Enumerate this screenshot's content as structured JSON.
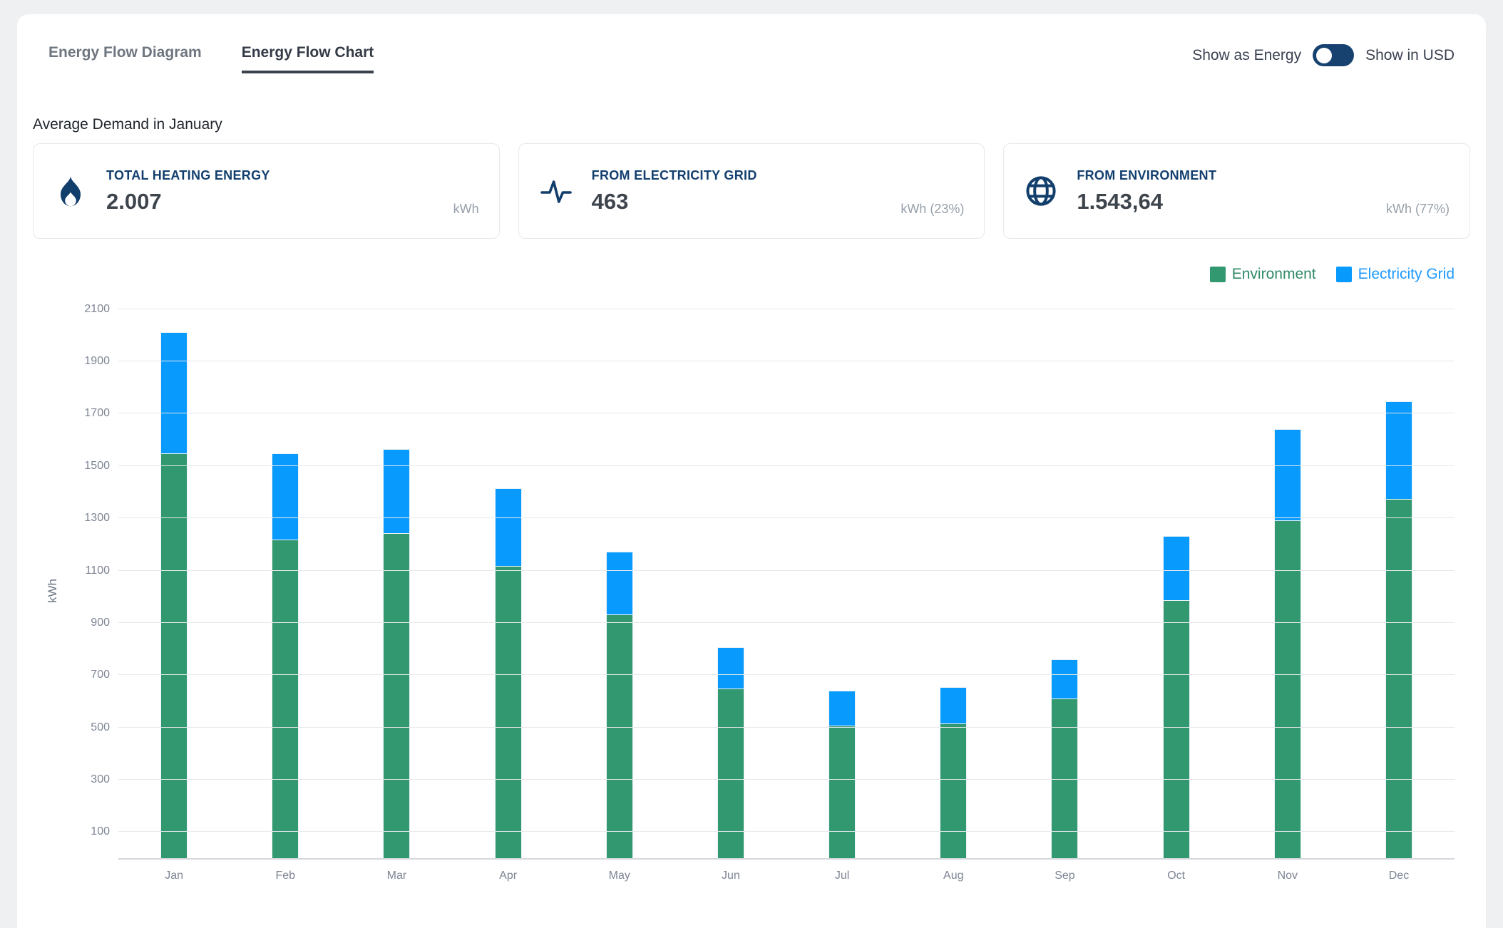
{
  "tabs": [
    {
      "label": "Energy Flow Diagram",
      "active": false
    },
    {
      "label": "Energy Flow Chart",
      "active": true
    }
  ],
  "toggle": {
    "left_label": "Show as Energy",
    "right_label": "Show in USD",
    "state": "energy"
  },
  "heading": "Average Demand in January",
  "cards": [
    {
      "icon": "flame-icon",
      "title": "TOTAL HEATING ENERGY",
      "value": "2.007",
      "unit": "kWh"
    },
    {
      "icon": "activity-icon",
      "title": "FROM ELECTRICITY GRID",
      "value": "463",
      "unit": "kWh (23%)"
    },
    {
      "icon": "globe-icon",
      "title": "FROM ENVIRONMENT",
      "value": "1.543,64",
      "unit": "kWh (77%)"
    }
  ],
  "legend": [
    {
      "label": "Environment",
      "swatch_color": "#31986f",
      "text_color": "#2f8a66"
    },
    {
      "label": "Electricity Grid",
      "swatch_color": "#089afd",
      "text_color": "#1f9aff"
    }
  ],
  "colors": {
    "navy_accent": "#17416e",
    "environment_green": "#31986f",
    "grid_blue": "#089afd",
    "gridline": "#e6e8eb"
  },
  "chart_data": {
    "type": "bar",
    "stacked": true,
    "title": "",
    "xlabel": "",
    "ylabel": "kWh",
    "categories": [
      "Jan",
      "Feb",
      "Mar",
      "Apr",
      "May",
      "Jun",
      "Jul",
      "Aug",
      "Sep",
      "Oct",
      "Nov",
      "Dec"
    ],
    "series": [
      {
        "name": "Environment",
        "color": "#31986f",
        "values": [
          1544,
          1215,
          1240,
          1115,
          930,
          648,
          505,
          515,
          610,
          985,
          1288,
          1370
        ]
      },
      {
        "name": "Electricity Grid",
        "color": "#089afd",
        "values": [
          463,
          330,
          320,
          295,
          240,
          158,
          133,
          137,
          148,
          245,
          350,
          372
        ]
      }
    ],
    "totals": [
      2007,
      1545,
      1560,
      1410,
      1170,
      806,
      638,
      652,
      758,
      1230,
      1638,
      1742
    ],
    "yticks": [
      100,
      300,
      500,
      700,
      900,
      1100,
      1300,
      1500,
      1700,
      1900,
      2100
    ],
    "ylim": [
      0,
      2140
    ],
    "grid": true,
    "legend_position": "top-right"
  }
}
